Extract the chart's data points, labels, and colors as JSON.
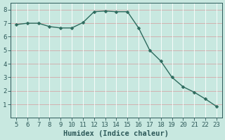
{
  "x": [
    5,
    6,
    7,
    8,
    9,
    10,
    11,
    12,
    13,
    14,
    15,
    16,
    17,
    18,
    19,
    20,
    21,
    22,
    23
  ],
  "y": [
    6.9,
    7.0,
    7.0,
    6.75,
    6.65,
    6.65,
    7.05,
    7.85,
    7.9,
    7.85,
    7.85,
    6.65,
    5.0,
    4.2,
    3.0,
    2.3,
    1.9,
    1.4,
    0.85
  ],
  "line_color": "#2e6b5e",
  "marker_color": "#2e6b5e",
  "bg_color": "#c8e8e0",
  "grid_major_color": "#e8c8c8",
  "grid_minor_color": "#d8d8d8",
  "xlabel": "Humidex (Indice chaleur)",
  "xlim": [
    4.5,
    23.5
  ],
  "ylim": [
    0,
    8.5
  ],
  "xticks": [
    5,
    6,
    7,
    8,
    9,
    10,
    11,
    12,
    13,
    14,
    15,
    16,
    17,
    18,
    19,
    20,
    21,
    22,
    23
  ],
  "yticks": [
    1,
    2,
    3,
    4,
    5,
    6,
    7,
    8
  ],
  "tick_fontsize": 6.5,
  "xlabel_fontsize": 7.5,
  "label_color": "#2e5a5a",
  "spine_color": "#2e5a5a",
  "linewidth": 1.0,
  "markersize": 2.5
}
